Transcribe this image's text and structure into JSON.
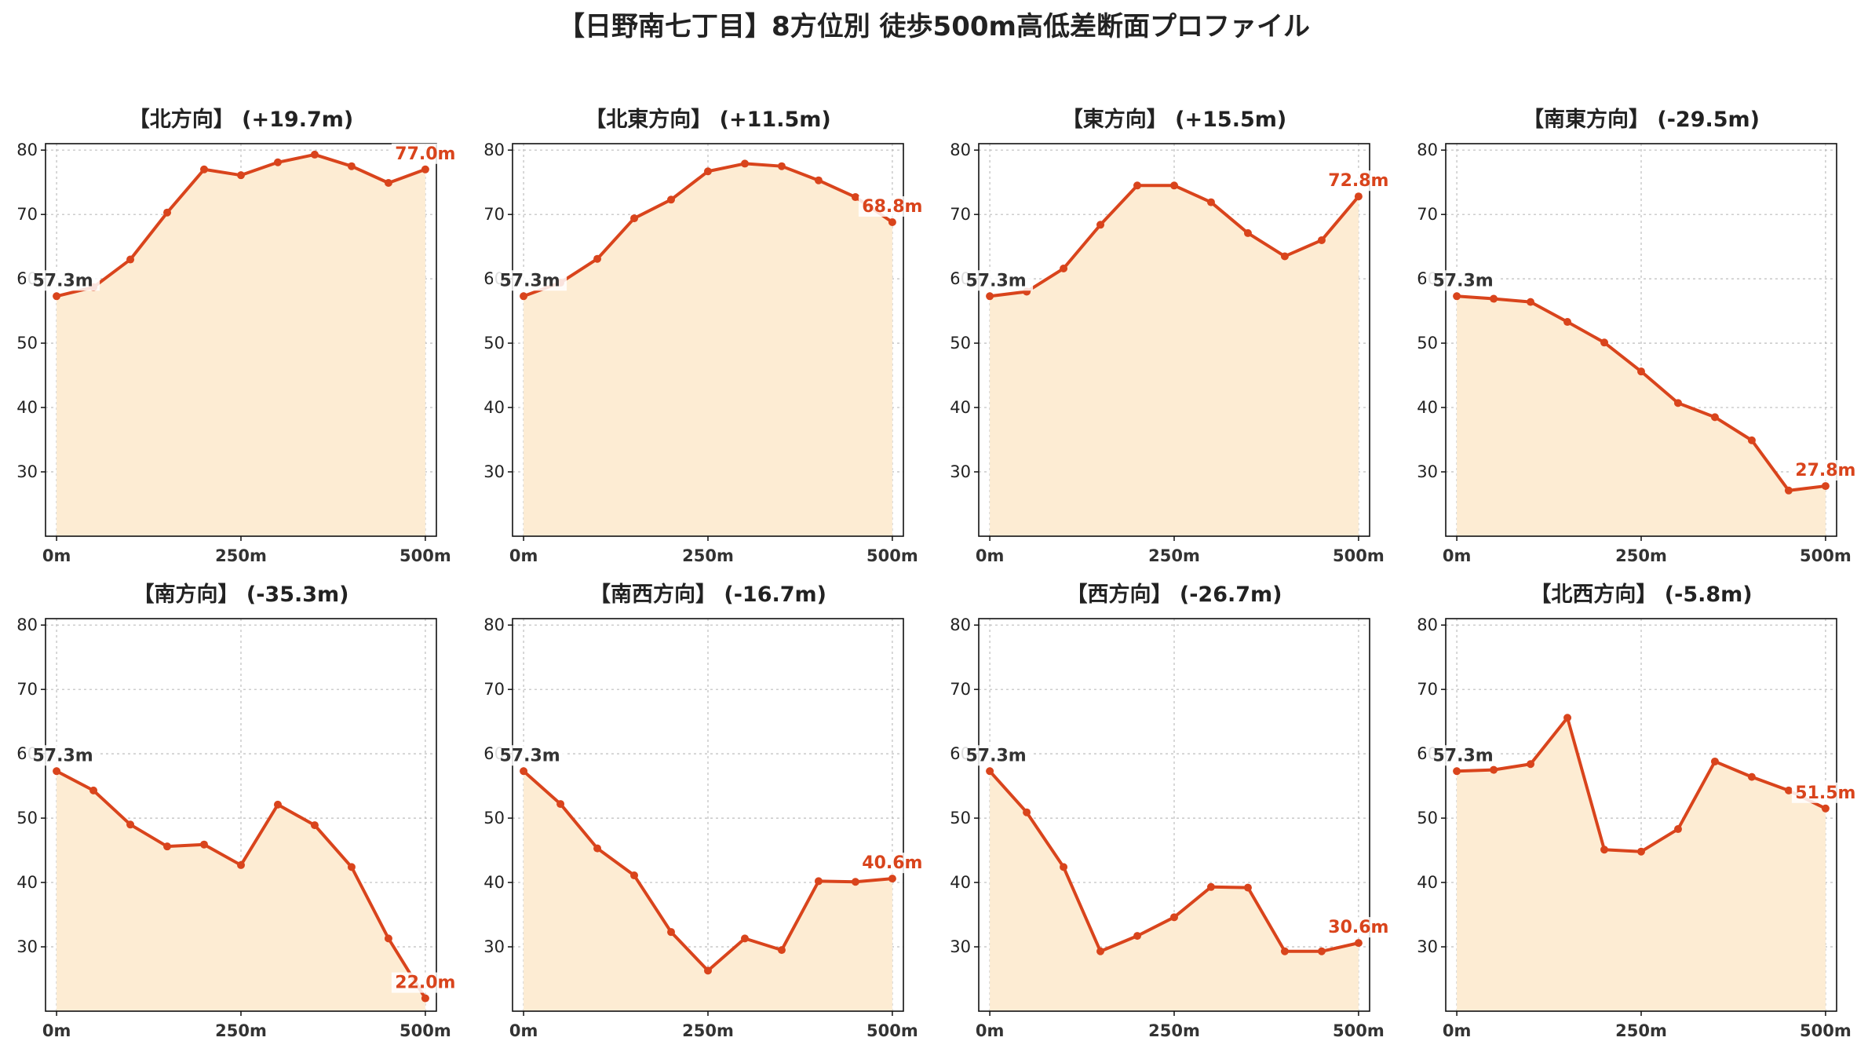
{
  "title": "【日野南七丁目】8方位別 徒歩500m高低差断面プロファイル",
  "style": {
    "line_color": "#d9441c",
    "fill_color": "#fdecd3",
    "grid_color": "#bdbdbd"
  },
  "chart_data": [
    {
      "type": "area",
      "title": "【北方向】 (+19.7m)",
      "x": [
        0,
        50,
        100,
        150,
        200,
        250,
        300,
        350,
        400,
        450,
        500
      ],
      "y": [
        57.3,
        58.7,
        63.0,
        70.3,
        77.0,
        76.1,
        78.1,
        79.3,
        77.5,
        74.9,
        77.0
      ],
      "xticks": [
        0,
        250,
        500
      ],
      "xtick_labels": [
        "0m",
        "250m",
        "500m"
      ],
      "yticks": [
        30,
        40,
        50,
        60,
        70,
        80
      ],
      "ytick_labels": [
        "30",
        "40",
        "50",
        "60",
        "70",
        "80"
      ],
      "xlim": [
        -15,
        515
      ],
      "ylim": [
        20,
        81
      ],
      "start_label": "57.3m",
      "end_label": "77.0m",
      "grid": true
    },
    {
      "type": "area",
      "title": "【北東方向】 (+11.5m)",
      "x": [
        0,
        50,
        100,
        150,
        200,
        250,
        300,
        350,
        400,
        450,
        500
      ],
      "y": [
        57.3,
        59.4,
        63.1,
        69.4,
        72.3,
        76.7,
        77.9,
        77.5,
        75.3,
        72.7,
        68.8
      ],
      "xticks": [
        0,
        250,
        500
      ],
      "xtick_labels": [
        "0m",
        "250m",
        "500m"
      ],
      "yticks": [
        30,
        40,
        50,
        60,
        70,
        80
      ],
      "ytick_labels": [
        "30",
        "40",
        "50",
        "60",
        "70",
        "80"
      ],
      "xlim": [
        -15,
        515
      ],
      "ylim": [
        20,
        81
      ],
      "start_label": "57.3m",
      "end_label": "68.8m",
      "grid": true
    },
    {
      "type": "area",
      "title": "【東方向】 (+15.5m)",
      "x": [
        0,
        50,
        100,
        150,
        200,
        250,
        300,
        350,
        400,
        450,
        500
      ],
      "y": [
        57.3,
        58.0,
        61.6,
        68.4,
        74.5,
        74.5,
        71.9,
        67.1,
        63.5,
        66.0,
        72.8
      ],
      "xticks": [
        0,
        250,
        500
      ],
      "xtick_labels": [
        "0m",
        "250m",
        "500m"
      ],
      "yticks": [
        30,
        40,
        50,
        60,
        70,
        80
      ],
      "ytick_labels": [
        "30",
        "40",
        "50",
        "60",
        "70",
        "80"
      ],
      "xlim": [
        -15,
        515
      ],
      "ylim": [
        20,
        81
      ],
      "start_label": "57.3m",
      "end_label": "72.8m",
      "grid": true
    },
    {
      "type": "area",
      "title": "【南東方向】 (-29.5m)",
      "x": [
        0,
        50,
        100,
        150,
        200,
        250,
        300,
        350,
        400,
        450,
        500
      ],
      "y": [
        57.3,
        56.9,
        56.4,
        53.3,
        50.1,
        45.6,
        40.7,
        38.5,
        34.9,
        27.1,
        27.8
      ],
      "xticks": [
        0,
        250,
        500
      ],
      "xtick_labels": [
        "0m",
        "250m",
        "500m"
      ],
      "yticks": [
        30,
        40,
        50,
        60,
        70,
        80
      ],
      "ytick_labels": [
        "30",
        "40",
        "50",
        "60",
        "70",
        "80"
      ],
      "xlim": [
        -15,
        515
      ],
      "ylim": [
        20,
        81
      ],
      "start_label": "57.3m",
      "end_label": "27.8m",
      "grid": true
    },
    {
      "type": "area",
      "title": "【南方向】 (-35.3m)",
      "x": [
        0,
        50,
        100,
        150,
        200,
        250,
        300,
        350,
        400,
        450,
        500
      ],
      "y": [
        57.3,
        54.3,
        49.0,
        45.6,
        45.9,
        42.7,
        52.1,
        48.9,
        42.4,
        31.3,
        22.0
      ],
      "xticks": [
        0,
        250,
        500
      ],
      "xtick_labels": [
        "0m",
        "250m",
        "500m"
      ],
      "yticks": [
        30,
        40,
        50,
        60,
        70,
        80
      ],
      "ytick_labels": [
        "30",
        "40",
        "50",
        "60",
        "70",
        "80"
      ],
      "xlim": [
        -15,
        515
      ],
      "ylim": [
        20,
        81
      ],
      "start_label": "57.3m",
      "end_label": "22.0m",
      "grid": true
    },
    {
      "type": "area",
      "title": "【南西方向】 (-16.7m)",
      "x": [
        0,
        50,
        100,
        150,
        200,
        250,
        300,
        350,
        400,
        450,
        500
      ],
      "y": [
        57.3,
        52.2,
        45.3,
        41.1,
        32.3,
        26.3,
        31.3,
        29.5,
        40.2,
        40.1,
        40.6
      ],
      "xticks": [
        0,
        250,
        500
      ],
      "xtick_labels": [
        "0m",
        "250m",
        "500m"
      ],
      "yticks": [
        30,
        40,
        50,
        60,
        70,
        80
      ],
      "ytick_labels": [
        "30",
        "40",
        "50",
        "60",
        "70",
        "80"
      ],
      "xlim": [
        -15,
        515
      ],
      "ylim": [
        20,
        81
      ],
      "start_label": "57.3m",
      "end_label": "40.6m",
      "grid": true
    },
    {
      "type": "area",
      "title": "【西方向】 (-26.7m)",
      "x": [
        0,
        50,
        100,
        150,
        200,
        250,
        300,
        350,
        400,
        450,
        500
      ],
      "y": [
        57.3,
        50.9,
        42.4,
        29.3,
        31.7,
        34.6,
        39.3,
        39.2,
        29.3,
        29.3,
        30.6
      ],
      "xticks": [
        0,
        250,
        500
      ],
      "xtick_labels": [
        "0m",
        "250m",
        "500m"
      ],
      "yticks": [
        30,
        40,
        50,
        60,
        70,
        80
      ],
      "ytick_labels": [
        "30",
        "40",
        "50",
        "60",
        "70",
        "80"
      ],
      "xlim": [
        -15,
        515
      ],
      "ylim": [
        20,
        81
      ],
      "start_label": "57.3m",
      "end_label": "30.6m",
      "grid": true
    },
    {
      "type": "area",
      "title": "【北西方向】 (-5.8m)",
      "x": [
        0,
        50,
        100,
        150,
        200,
        250,
        300,
        350,
        400,
        450,
        500
      ],
      "y": [
        57.3,
        57.5,
        58.4,
        65.6,
        45.1,
        44.8,
        48.3,
        58.8,
        56.4,
        54.3,
        51.5
      ],
      "xticks": [
        0,
        250,
        500
      ],
      "xtick_labels": [
        "0m",
        "250m",
        "500m"
      ],
      "yticks": [
        30,
        40,
        50,
        60,
        70,
        80
      ],
      "ytick_labels": [
        "30",
        "40",
        "50",
        "60",
        "70",
        "80"
      ],
      "xlim": [
        -15,
        515
      ],
      "ylim": [
        20,
        81
      ],
      "start_label": "57.3m",
      "end_label": "51.5m",
      "grid": true
    }
  ]
}
